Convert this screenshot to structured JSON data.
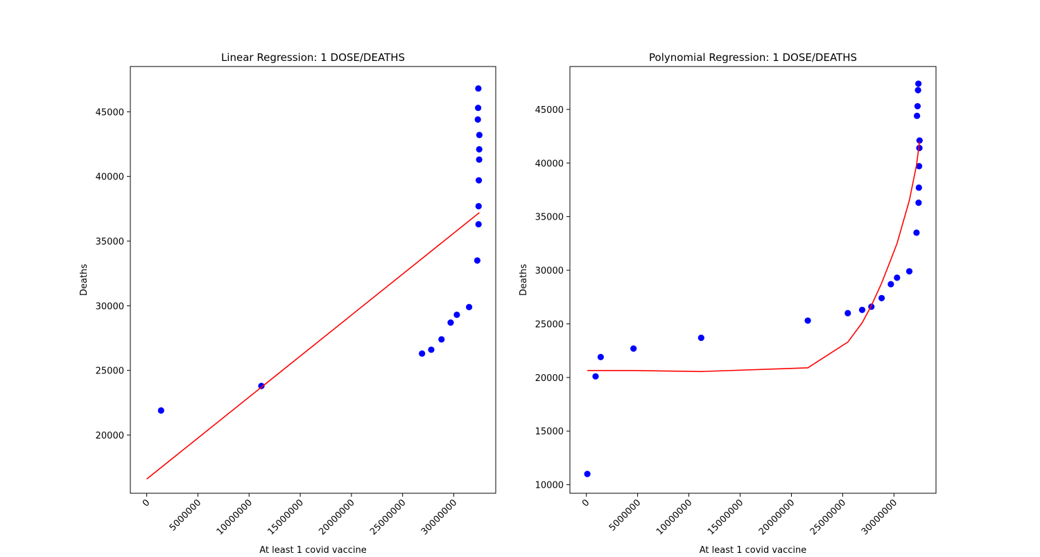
{
  "chart_data": [
    {
      "type": "scatter",
      "title": "Linear Regression: 1 DOSE/DEATHS",
      "xlabel": "At least 1 covid vaccine",
      "ylabel": "Deaths",
      "xlim": [
        -1600000,
        34100000
      ],
      "ylim": [
        15500,
        48500
      ],
      "xticks": [
        0,
        5000000,
        10000000,
        15000000,
        20000000,
        25000000,
        30000000
      ],
      "xtick_labels": [
        "0",
        "5000000",
        "10000000",
        "15000000",
        "20000000",
        "25000000",
        "30000000"
      ],
      "yticks": [
        20000,
        25000,
        30000,
        35000,
        40000,
        45000
      ],
      "ytick_labels": [
        "20000",
        "25000",
        "30000",
        "35000",
        "40000",
        "45000"
      ],
      "grid": false,
      "series": [
        {
          "kind": "scatter",
          "color": "#0000ff",
          "x": [
            1400000,
            11200000,
            26900000,
            27800000,
            28800000,
            29700000,
            30300000,
            31500000,
            32300000,
            32350000,
            32380000,
            32400000,
            32420000,
            32430000,
            32450000,
            32480000,
            32490000,
            32500000
          ],
          "y": [
            21900,
            23800,
            26300,
            26600,
            27400,
            28700,
            29300,
            29900,
            33500,
            44400,
            45300,
            46800,
            36300,
            37700,
            39700,
            41300,
            42100,
            43200
          ]
        },
        {
          "kind": "line",
          "color": "#ff0000",
          "x": [
            0,
            32500000
          ],
          "y": [
            16600,
            37200
          ]
        }
      ]
    },
    {
      "type": "scatter",
      "title": "Polynomial Regression: 1 DOSE/DEATHS",
      "xlabel": "At least 1 covid vaccine",
      "ylabel": "Deaths",
      "xlim": [
        -1600000,
        34100000
      ],
      "ylim": [
        9200,
        49000
      ],
      "xticks": [
        0,
        5000000,
        10000000,
        15000000,
        20000000,
        25000000,
        30000000
      ],
      "xtick_labels": [
        "0",
        "5000000",
        "10000000",
        "15000000",
        "20000000",
        "25000000",
        "30000000"
      ],
      "yticks": [
        10000,
        15000,
        20000,
        25000,
        30000,
        35000,
        40000,
        45000
      ],
      "ytick_labels": [
        "10000",
        "15000",
        "20000",
        "25000",
        "30000",
        "35000",
        "40000",
        "45000"
      ],
      "grid": false,
      "series": [
        {
          "kind": "scatter",
          "color": "#0000ff",
          "x": [
            100000,
            900000,
            1400000,
            4600000,
            11200000,
            21600000,
            25500000,
            26900000,
            27800000,
            28800000,
            29700000,
            30300000,
            31500000,
            32200000,
            32250000,
            32300000,
            32350000,
            32380000,
            32400000,
            32430000,
            32450000,
            32480000,
            32500000
          ],
          "y": [
            11000,
            20100,
            21900,
            22700,
            23700,
            25300,
            26000,
            26300,
            26600,
            27400,
            28700,
            29300,
            29900,
            33500,
            44400,
            45300,
            46800,
            47400,
            36300,
            37700,
            39700,
            41400,
            42100
          ]
        },
        {
          "kind": "line",
          "color": "#ff0000",
          "x": [
            100000,
            4600000,
            11200000,
            21600000,
            25500000,
            26900000,
            27800000,
            28800000,
            29700000,
            30300000,
            31500000,
            32200000,
            32500000
          ],
          "y": [
            20650,
            20650,
            20550,
            20900,
            23300,
            25100,
            26700,
            28800,
            31000,
            32500,
            36500,
            39800,
            42000
          ]
        }
      ]
    }
  ]
}
